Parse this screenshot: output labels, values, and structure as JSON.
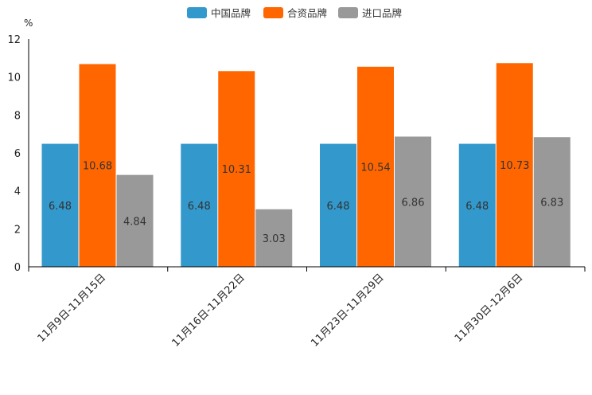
{
  "chart_data": {
    "type": "bar",
    "unit_label": "%",
    "categories": [
      "11月9日-11月15日",
      "11月16日-11月22日",
      "11月23日-11月29日",
      "11月30日-12月6日"
    ],
    "series": [
      {
        "name": "中国品牌",
        "color": "#3399cc",
        "values": [
          6.48,
          6.48,
          6.48,
          6.48
        ]
      },
      {
        "name": "合资品牌",
        "color": "#ff6600",
        "values": [
          10.68,
          10.31,
          10.54,
          10.73
        ]
      },
      {
        "name": "进口品牌",
        "color": "#999999",
        "values": [
          4.84,
          3.03,
          6.86,
          6.83
        ]
      }
    ],
    "ylim": [
      0,
      12
    ],
    "yticks": [
      0,
      2,
      4,
      6,
      8,
      10,
      12
    ],
    "legend_position": "top-center",
    "grid": false
  }
}
